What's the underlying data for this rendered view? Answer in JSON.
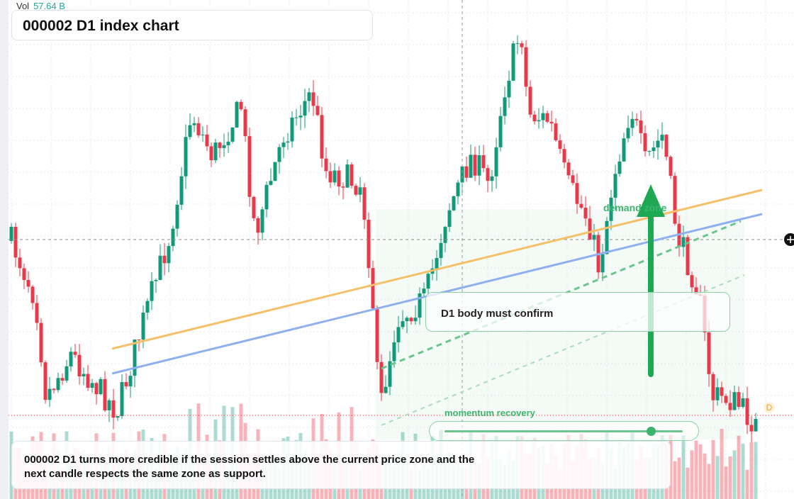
{
  "header": {
    "vol_label": "Vol",
    "vol_value": "57.64 B",
    "title": "000002 D1 index chart"
  },
  "annotations": {
    "zone": "demand zone",
    "callout": "D1 body must confirm",
    "slider": "momentum recovery",
    "badge": "D"
  },
  "caption": "000002 D1 turns more credible if the session settles above the current price zone and the next candle respects the same zone as support."
}
